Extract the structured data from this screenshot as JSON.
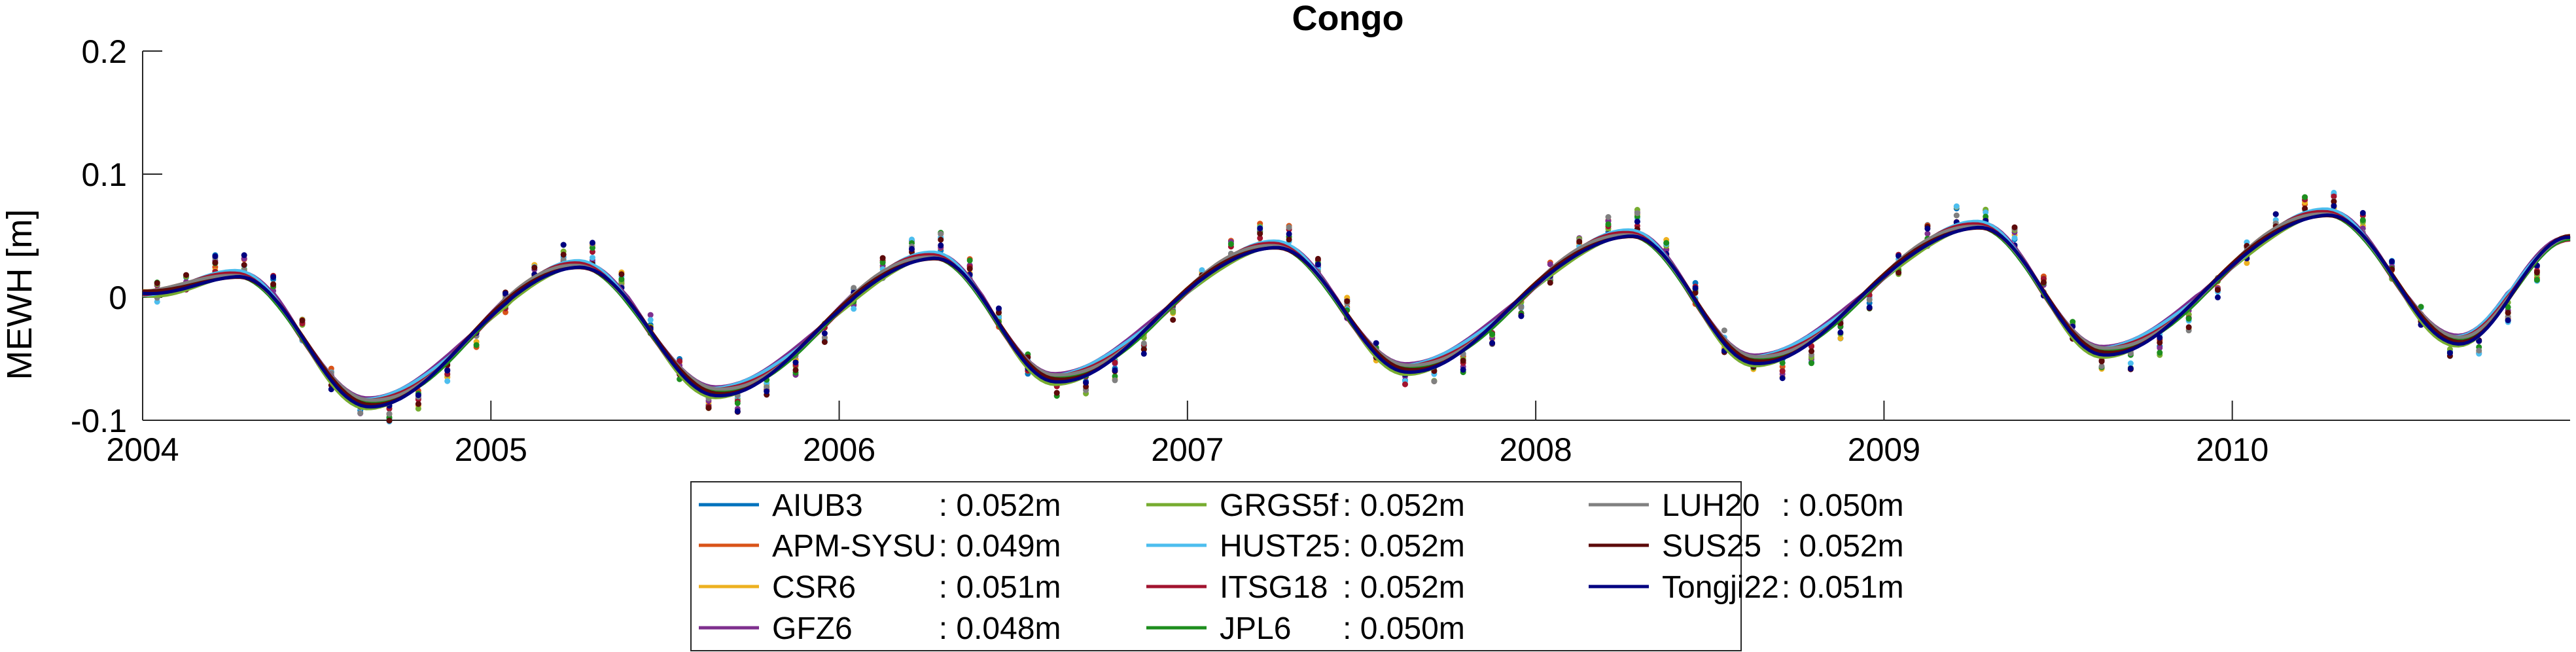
{
  "chart_data": {
    "type": "line",
    "title": "Congo",
    "xlabel": "",
    "ylabel": "MEWH [m]",
    "xlim": [
      2004,
      2010.97
    ],
    "ylim": [
      -0.1,
      0.2
    ],
    "xticks": [
      "2004",
      "2005",
      "2006",
      "2007",
      "2008",
      "2009",
      "2010"
    ],
    "yticks": [
      "-0.1",
      "0",
      "0.1",
      "0.2"
    ],
    "grid": false,
    "legend_position": "bottom-center",
    "annual_peaks": [
      [
        2004.27,
        0.018
      ],
      [
        2005.25,
        0.026
      ],
      [
        2006.27,
        0.033
      ],
      [
        2007.25,
        0.042
      ],
      [
        2008.27,
        0.051
      ],
      [
        2009.27,
        0.058
      ],
      [
        2010.27,
        0.068
      ]
    ],
    "annual_troughs": [
      [
        2004.65,
        -0.086
      ],
      [
        2005.65,
        -0.077
      ],
      [
        2006.62,
        -0.066
      ],
      [
        2007.63,
        -0.058
      ],
      [
        2008.63,
        -0.051
      ],
      [
        2009.63,
        -0.044
      ],
      [
        2010.65,
        -0.035
      ]
    ],
    "end_point": [
      2010.97,
      0.048
    ],
    "series": [
      {
        "name": "AIUB3",
        "rmse": ": 0.052m",
        "color": "#0072BD",
        "offset": 0.0,
        "jitter": 0.004
      },
      {
        "name": "APM-SYSU",
        "rmse": ": 0.049m",
        "color": "#D95319",
        "offset": 0.002,
        "jitter": 0.004
      },
      {
        "name": "CSR6",
        "rmse": ": 0.051m",
        "color": "#EDB120",
        "offset": 0.001,
        "jitter": 0.005
      },
      {
        "name": "GFZ6",
        "rmse": ": 0.048m",
        "color": "#7E2F8E",
        "offset": 0.006,
        "jitter": 0.004
      },
      {
        "name": "GRGS5f",
        "rmse": ": 0.052m",
        "color": "#77AC30",
        "offset": -0.003,
        "jitter": 0.006
      },
      {
        "name": "HUST25",
        "rmse": ": 0.052m",
        "color": "#4DBEEE",
        "offset": 0.003,
        "jitter": 0.005
      },
      {
        "name": "ITSG18",
        "rmse": ": 0.052m",
        "color": "#A2142F",
        "offset": 0.001,
        "jitter": 0.004
      },
      {
        "name": "JPL6",
        "rmse": ": 0.050m",
        "color": "#1E8E1E",
        "offset": -0.001,
        "jitter": 0.004
      },
      {
        "name": "LUH20",
        "rmse": ": 0.050m",
        "color": "#808080",
        "offset": 0.002,
        "jitter": 0.004
      },
      {
        "name": "SUS25",
        "rmse": ": 0.052m",
        "color": "#5C0A0A",
        "offset": 0.0,
        "jitter": 0.005
      },
      {
        "name": "Tongji22",
        "rmse": ": 0.051m",
        "color": "#000080",
        "offset": -0.002,
        "jitter": 0.003
      }
    ]
  }
}
